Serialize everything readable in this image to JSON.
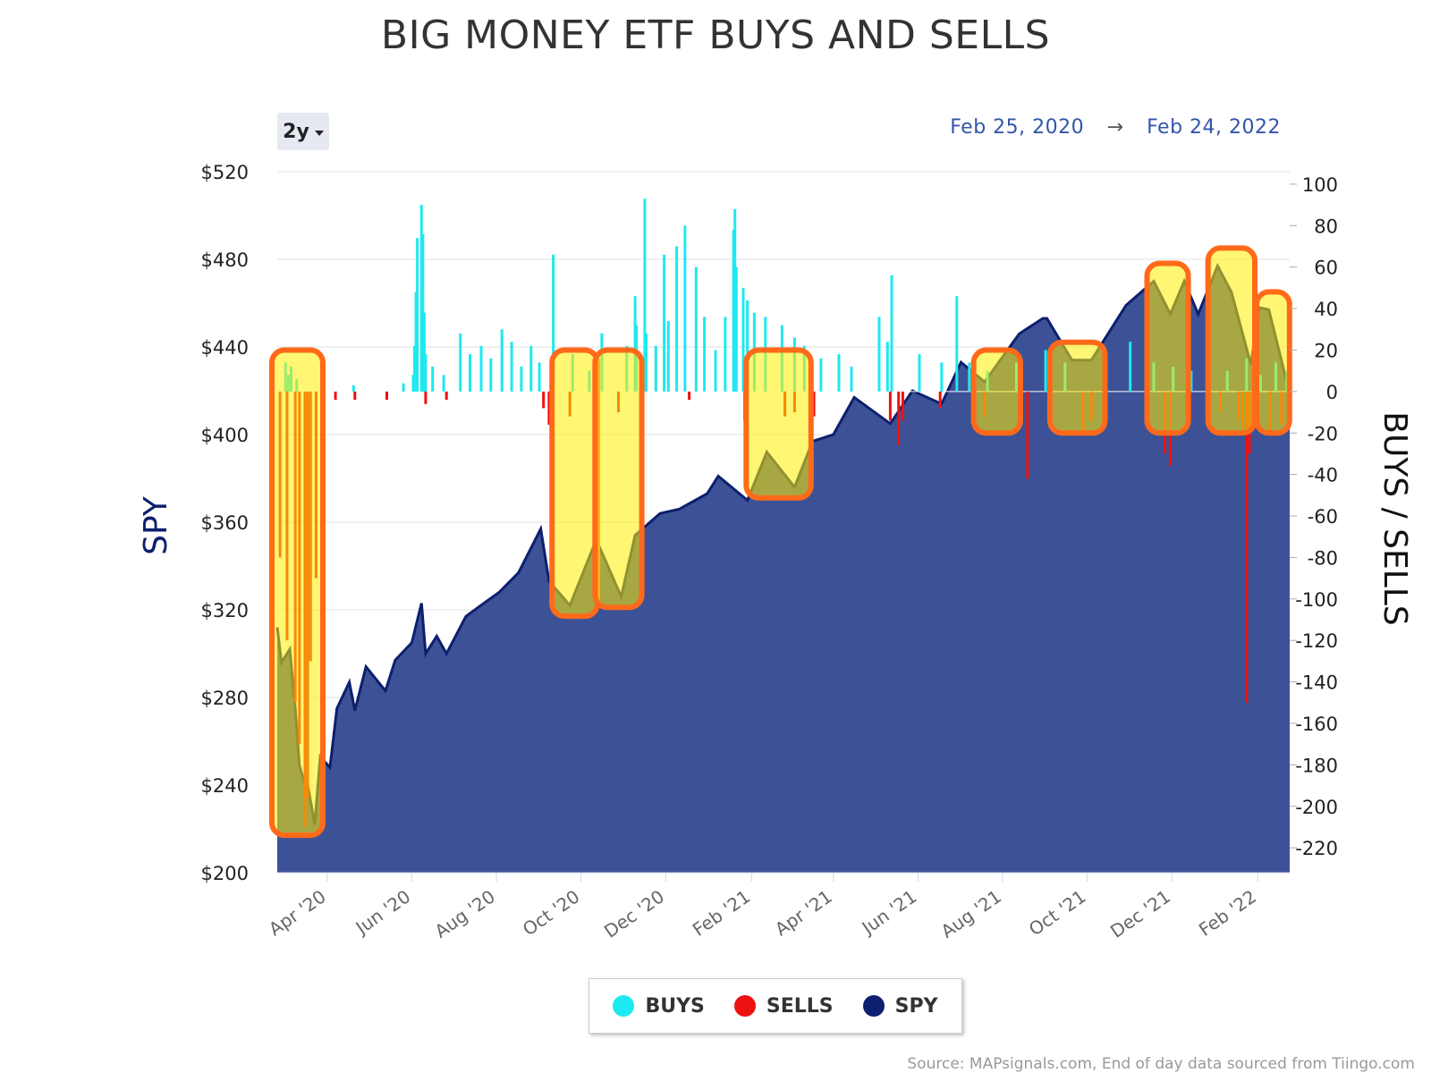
{
  "title": "BIG MONEY ETF BUYS AND SELLS",
  "range_selector": {
    "label": "2y"
  },
  "date_range": {
    "start": "Feb 25, 2020",
    "arrow": "→",
    "end": "Feb 24, 2022"
  },
  "source": "Source: MAPsignals.com, End of day data sourced from Tiingo.com",
  "colors": {
    "buys": "#1de9f0",
    "sells": "#ee1111",
    "spy_line": "#0d1f6e",
    "spy_area": "#3d5296",
    "highlight_fill": "#ffee00",
    "highlight_stroke": "#ff6a1a"
  },
  "legend": [
    {
      "label": "BUYS",
      "color": "#1de9f0"
    },
    {
      "label": "SELLS",
      "color": "#ee1111"
    },
    {
      "label": "SPY",
      "color": "#0d1f6e"
    }
  ],
  "chart_data": {
    "type": "bar",
    "title": "BIG MONEY ETF BUYS AND SELLS",
    "xlabel": "",
    "y_left_label": "SPY",
    "y_right_label": "BUYS / SELLS",
    "y_left_ticks": [
      "$520",
      "$480",
      "$440",
      "$400",
      "$360",
      "$320",
      "$280",
      "$240",
      "$200"
    ],
    "y_left_range": [
      200,
      520
    ],
    "y_right_ticks": [
      "100",
      "80",
      "60",
      "40",
      "20",
      "0",
      "-20",
      "-40",
      "-60",
      "-80",
      "-100",
      "-120",
      "-140",
      "-160",
      "-180",
      "-200",
      "-220"
    ],
    "y_right_range": [
      -232,
      106
    ],
    "x_range": [
      "2020-02-25",
      "2022-02-24"
    ],
    "x_ticks": [
      {
        "label": "Apr '20",
        "date": "2020-04-01"
      },
      {
        "label": "Jun '20",
        "date": "2020-06-01"
      },
      {
        "label": "Aug '20",
        "date": "2020-08-01"
      },
      {
        "label": "Oct '20",
        "date": "2020-10-01"
      },
      {
        "label": "Dec '20",
        "date": "2020-12-01"
      },
      {
        "label": "Feb '21",
        "date": "2021-02-01"
      },
      {
        "label": "Apr '21",
        "date": "2021-04-01"
      },
      {
        "label": "Jun '21",
        "date": "2021-06-01"
      },
      {
        "label": "Aug '21",
        "date": "2021-08-01"
      },
      {
        "label": "Oct '21",
        "date": "2021-10-01"
      },
      {
        "label": "Dec '21",
        "date": "2021-12-01"
      },
      {
        "label": "Feb '22",
        "date": "2022-02-01"
      }
    ],
    "grid": true,
    "legend_position": "bottom-center",
    "series": [
      {
        "name": "SPY",
        "type": "area",
        "axis": "left",
        "points": [
          [
            "2020-02-25",
            312
          ],
          [
            "2020-02-28",
            296
          ],
          [
            "2020-03-05",
            302
          ],
          [
            "2020-03-09",
            275
          ],
          [
            "2020-03-12",
            249
          ],
          [
            "2020-03-16",
            240
          ],
          [
            "2020-03-18",
            240
          ],
          [
            "2020-03-23",
            222
          ],
          [
            "2020-03-27",
            253
          ],
          [
            "2020-04-03",
            248
          ],
          [
            "2020-04-08",
            275
          ],
          [
            "2020-04-17",
            287
          ],
          [
            "2020-04-21",
            274
          ],
          [
            "2020-04-29",
            294
          ],
          [
            "2020-05-13",
            283
          ],
          [
            "2020-05-20",
            297
          ],
          [
            "2020-06-01",
            305
          ],
          [
            "2020-06-08",
            323
          ],
          [
            "2020-06-11",
            300
          ],
          [
            "2020-06-19",
            308
          ],
          [
            "2020-06-26",
            300
          ],
          [
            "2020-07-10",
            317
          ],
          [
            "2020-07-23",
            323
          ],
          [
            "2020-08-03",
            328
          ],
          [
            "2020-08-17",
            337
          ],
          [
            "2020-09-02",
            357
          ],
          [
            "2020-09-08",
            333
          ],
          [
            "2020-09-23",
            322
          ],
          [
            "2020-10-12",
            352
          ],
          [
            "2020-10-30",
            326
          ],
          [
            "2020-11-09",
            354
          ],
          [
            "2020-11-27",
            364
          ],
          [
            "2020-12-11",
            366
          ],
          [
            "2020-12-31",
            373
          ],
          [
            "2021-01-08",
            381
          ],
          [
            "2021-01-29",
            370
          ],
          [
            "2021-02-12",
            392
          ],
          [
            "2021-03-04",
            376
          ],
          [
            "2021-03-17",
            397
          ],
          [
            "2021-04-01",
            400
          ],
          [
            "2021-04-16",
            417
          ],
          [
            "2021-05-12",
            405
          ],
          [
            "2021-05-28",
            420
          ],
          [
            "2021-06-18",
            414
          ],
          [
            "2021-07-02",
            433
          ],
          [
            "2021-07-19",
            424
          ],
          [
            "2021-08-13",
            446
          ],
          [
            "2021-08-30",
            453
          ],
          [
            "2021-09-02",
            453
          ],
          [
            "2021-09-20",
            434
          ],
          [
            "2021-10-04",
            434
          ],
          [
            "2021-10-29",
            459
          ],
          [
            "2021-11-18",
            470
          ],
          [
            "2021-11-30",
            455
          ],
          [
            "2021-12-10",
            470
          ],
          [
            "2021-12-20",
            455
          ],
          [
            "2022-01-03",
            477
          ],
          [
            "2022-01-13",
            465
          ],
          [
            "2022-01-27",
            432
          ],
          [
            "2022-02-02",
            458
          ],
          [
            "2022-02-09",
            457
          ],
          [
            "2022-02-18",
            434
          ],
          [
            "2022-02-23",
            421
          ],
          [
            "2022-02-24",
            428
          ]
        ]
      },
      {
        "name": "BUYS",
        "type": "bar",
        "axis": "right",
        "points": [
          [
            "2020-03-02",
            14
          ],
          [
            "2020-03-04",
            8
          ],
          [
            "2020-03-06",
            12
          ],
          [
            "2020-03-10",
            6
          ],
          [
            "2020-04-20",
            3
          ],
          [
            "2020-05-26",
            4
          ],
          [
            "2020-06-02",
            8
          ],
          [
            "2020-06-03",
            22
          ],
          [
            "2020-06-04",
            48
          ],
          [
            "2020-06-05",
            74
          ],
          [
            "2020-06-08",
            90
          ],
          [
            "2020-06-09",
            76
          ],
          [
            "2020-06-10",
            38
          ],
          [
            "2020-06-11",
            18
          ],
          [
            "2020-06-16",
            12
          ],
          [
            "2020-06-24",
            8
          ],
          [
            "2020-07-06",
            28
          ],
          [
            "2020-07-13",
            18
          ],
          [
            "2020-07-21",
            22
          ],
          [
            "2020-07-28",
            16
          ],
          [
            "2020-08-05",
            30
          ],
          [
            "2020-08-12",
            24
          ],
          [
            "2020-08-19",
            12
          ],
          [
            "2020-08-26",
            22
          ],
          [
            "2020-09-01",
            14
          ],
          [
            "2020-09-11",
            66
          ],
          [
            "2020-09-25",
            18
          ],
          [
            "2020-10-07",
            10
          ],
          [
            "2020-10-16",
            28
          ],
          [
            "2020-11-03",
            22
          ],
          [
            "2020-11-09",
            46
          ],
          [
            "2020-11-10",
            32
          ],
          [
            "2020-11-16",
            93
          ],
          [
            "2020-11-17",
            28
          ],
          [
            "2020-11-24",
            22
          ],
          [
            "2020-11-30",
            66
          ],
          [
            "2020-12-03",
            34
          ],
          [
            "2020-12-09",
            70
          ],
          [
            "2020-12-15",
            80
          ],
          [
            "2020-12-23",
            60
          ],
          [
            "2020-12-29",
            36
          ],
          [
            "2021-01-06",
            20
          ],
          [
            "2021-01-13",
            36
          ],
          [
            "2021-01-19",
            78
          ],
          [
            "2021-01-20",
            88
          ],
          [
            "2021-01-21",
            60
          ],
          [
            "2021-01-26",
            50
          ],
          [
            "2021-01-29",
            44
          ],
          [
            "2021-02-03",
            38
          ],
          [
            "2021-02-11",
            36
          ],
          [
            "2021-02-23",
            32
          ],
          [
            "2021-03-04",
            26
          ],
          [
            "2021-03-11",
            22
          ],
          [
            "2021-03-23",
            16
          ],
          [
            "2021-04-05",
            18
          ],
          [
            "2021-04-14",
            12
          ],
          [
            "2021-05-04",
            36
          ],
          [
            "2021-05-10",
            24
          ],
          [
            "2021-05-13",
            56
          ],
          [
            "2021-06-02",
            18
          ],
          [
            "2021-06-18",
            14
          ],
          [
            "2021-06-29",
            46
          ],
          [
            "2021-07-08",
            14
          ],
          [
            "2021-07-21",
            10
          ],
          [
            "2021-08-11",
            14
          ],
          [
            "2021-09-01",
            20
          ],
          [
            "2021-09-15",
            14
          ],
          [
            "2021-10-13",
            20
          ],
          [
            "2021-11-01",
            24
          ],
          [
            "2021-11-18",
            14
          ],
          [
            "2021-12-02",
            12
          ],
          [
            "2021-12-15",
            10
          ],
          [
            "2021-12-28",
            8
          ],
          [
            "2022-01-10",
            10
          ],
          [
            "2022-01-24",
            16
          ],
          [
            "2022-02-03",
            8
          ],
          [
            "2022-02-14",
            14
          ],
          [
            "2022-02-22",
            10
          ]
        ]
      },
      {
        "name": "SELLS",
        "type": "bar",
        "axis": "right",
        "points": [
          [
            "2020-02-27",
            -80
          ],
          [
            "2020-03-03",
            -120
          ],
          [
            "2020-03-09",
            -150
          ],
          [
            "2020-03-12",
            -170
          ],
          [
            "2020-03-16",
            -210
          ],
          [
            "2020-03-18",
            -196
          ],
          [
            "2020-03-20",
            -130
          ],
          [
            "2020-03-24",
            -90
          ],
          [
            "2020-04-07",
            -4
          ],
          [
            "2020-04-21",
            -4
          ],
          [
            "2020-05-14",
            -4
          ],
          [
            "2020-06-11",
            -6
          ],
          [
            "2020-06-26",
            -4
          ],
          [
            "2020-09-04",
            -8
          ],
          [
            "2020-09-08",
            -16
          ],
          [
            "2020-09-10",
            -20
          ],
          [
            "2020-09-23",
            -12
          ],
          [
            "2020-10-28",
            -10
          ],
          [
            "2020-12-18",
            -4
          ],
          [
            "2021-01-27",
            -14
          ],
          [
            "2021-02-25",
            -12
          ],
          [
            "2021-03-04",
            -10
          ],
          [
            "2021-03-18",
            -12
          ],
          [
            "2021-05-12",
            -14
          ],
          [
            "2021-05-18",
            -26
          ],
          [
            "2021-05-21",
            -14
          ],
          [
            "2021-06-17",
            -8
          ],
          [
            "2021-07-19",
            -12
          ],
          [
            "2021-08-19",
            -42
          ],
          [
            "2021-09-28",
            -20
          ],
          [
            "2021-10-04",
            -14
          ],
          [
            "2021-11-26",
            -30
          ],
          [
            "2021-11-30",
            -36
          ],
          [
            "2021-12-14",
            -14
          ],
          [
            "2022-01-05",
            -10
          ],
          [
            "2022-01-18",
            -14
          ],
          [
            "2022-01-21",
            -18
          ],
          [
            "2022-01-24",
            -150
          ],
          [
            "2022-01-26",
            -30
          ],
          [
            "2022-02-10",
            -20
          ],
          [
            "2022-02-18",
            -16
          ]
        ]
      }
    ],
    "highlight_regions": [
      {
        "start": "2020-02-25",
        "end": "2020-03-25"
      },
      {
        "start": "2020-09-14",
        "end": "2020-10-09"
      },
      {
        "start": "2020-10-15",
        "end": "2020-11-10"
      },
      {
        "start": "2021-02-01",
        "end": "2021-03-12"
      },
      {
        "start": "2021-07-15",
        "end": "2021-08-10"
      },
      {
        "start": "2021-09-08",
        "end": "2021-10-10"
      },
      {
        "start": "2021-11-17",
        "end": "2021-12-09"
      },
      {
        "start": "2021-12-31",
        "end": "2022-01-26"
      },
      {
        "start": "2022-02-04",
        "end": "2022-02-20"
      }
    ]
  }
}
